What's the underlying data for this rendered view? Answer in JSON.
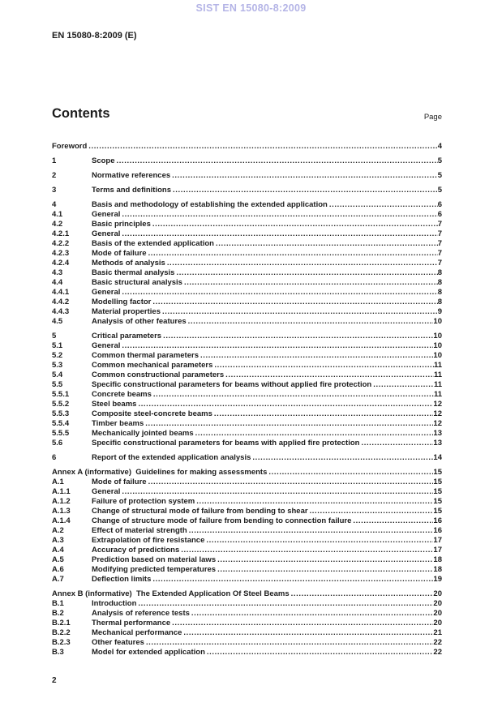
{
  "header": {
    "watermark": "SIST EN 15080-8:2009",
    "watermark_color": "#b4b4e6",
    "doc_ref": "EN 15080-8:2009 (E)"
  },
  "contents": {
    "title": "Contents",
    "page_label": "Page"
  },
  "toc": [
    {
      "num": "",
      "title": "Foreword",
      "page": "4",
      "section_start": true
    },
    {
      "num": "1",
      "title": "Scope",
      "page": "5",
      "section_start": true
    },
    {
      "num": "2",
      "title": "Normative references",
      "page": "5",
      "section_start": true
    },
    {
      "num": "3",
      "title": "Terms and definitions",
      "page": "5",
      "section_start": true
    },
    {
      "num": "4",
      "title": "Basis and methodology of establishing the extended application",
      "page": "6",
      "section_start": true
    },
    {
      "num": "4.1",
      "title": "General",
      "page": "6",
      "section_start": false
    },
    {
      "num": "4.2",
      "title": "Basic principles",
      "page": "7",
      "section_start": false
    },
    {
      "num": "4.2.1",
      "title": "General",
      "page": "7",
      "section_start": false
    },
    {
      "num": "4.2.2",
      "title": "Basis of the extended application",
      "page": "7",
      "section_start": false
    },
    {
      "num": "4.2.3",
      "title": "Mode of failure",
      "page": "7",
      "section_start": false
    },
    {
      "num": "4.2.4",
      "title": "Methods of analysis",
      "page": "7",
      "section_start": false
    },
    {
      "num": "4.3",
      "title": "Basic thermal analysis",
      "page": "8",
      "section_start": false
    },
    {
      "num": "4.4",
      "title": "Basic structural analysis",
      "page": "8",
      "section_start": false
    },
    {
      "num": "4.4.1",
      "title": "General",
      "page": "8",
      "section_start": false
    },
    {
      "num": "4.4.2",
      "title": "Modelling factor",
      "page": "8",
      "section_start": false
    },
    {
      "num": "4.4.3",
      "title": "Material properties",
      "page": "9",
      "section_start": false
    },
    {
      "num": "4.5",
      "title": "Analysis of other features",
      "page": "10",
      "section_start": false
    },
    {
      "num": "5",
      "title": "Critical parameters",
      "page": "10",
      "section_start": true
    },
    {
      "num": "5.1",
      "title": "General",
      "page": "10",
      "section_start": false
    },
    {
      "num": "5.2",
      "title": "Common thermal parameters",
      "page": "10",
      "section_start": false
    },
    {
      "num": "5.3",
      "title": "Common mechanical parameters",
      "page": "11",
      "section_start": false
    },
    {
      "num": "5.4",
      "title": "Common constructional parameters",
      "page": "11",
      "section_start": false
    },
    {
      "num": "5.5",
      "title": "Specific constructional parameters for beams without applied fire protection",
      "page": "11",
      "section_start": false
    },
    {
      "num": "5.5.1",
      "title": "Concrete beams",
      "page": "11",
      "section_start": false
    },
    {
      "num": "5.5.2",
      "title": "Steel beams",
      "page": "12",
      "section_start": false
    },
    {
      "num": "5.5.3",
      "title": "Composite steel-concrete beams",
      "page": "12",
      "section_start": false
    },
    {
      "num": "5.5.4",
      "title": "Timber beams",
      "page": "12",
      "section_start": false
    },
    {
      "num": "5.5.5",
      "title": "Mechanically jointed beams",
      "page": "13",
      "section_start": false
    },
    {
      "num": "5.6",
      "title": "Specific constructional parameters for beams with applied fire protection",
      "page": "13",
      "section_start": false
    },
    {
      "num": "6",
      "title": "Report of the extended application analysis",
      "page": "14",
      "section_start": true
    },
    {
      "num": "",
      "title": "Annex A (informative)  Guidelines for making assessments",
      "page": "15",
      "section_start": true
    },
    {
      "num": "A.1",
      "title": "Mode of failure",
      "page": "15",
      "section_start": false
    },
    {
      "num": "A.1.1",
      "title": "General",
      "page": "15",
      "section_start": false
    },
    {
      "num": "A.1.2",
      "title": "Failure of protection system",
      "page": "15",
      "section_start": false
    },
    {
      "num": "A.1.3",
      "title": "Change of structural mode of failure from bending to shear",
      "page": "15",
      "section_start": false
    },
    {
      "num": "A.1.4",
      "title": "Change of structure mode of failure from bending to connection failure",
      "page": "16",
      "section_start": false
    },
    {
      "num": "A.2",
      "title": "Effect of material strength",
      "page": "16",
      "section_start": false
    },
    {
      "num": "A.3",
      "title": "Extrapolation of fire resistance",
      "page": "17",
      "section_start": false
    },
    {
      "num": "A.4",
      "title": "Accuracy of predictions",
      "page": "17",
      "section_start": false
    },
    {
      "num": "A.5",
      "title": "Prediction based on material laws",
      "page": "18",
      "section_start": false
    },
    {
      "num": "A.6",
      "title": "Modifying predicted temperatures",
      "page": "18",
      "section_start": false
    },
    {
      "num": "A.7",
      "title": "Deflection limits",
      "page": "19",
      "section_start": false
    },
    {
      "num": "",
      "title": "Annex B (informative)  The Extended Application Of Steel Beams",
      "page": "20",
      "section_start": true
    },
    {
      "num": "B.1",
      "title": "Introduction",
      "page": "20",
      "section_start": false
    },
    {
      "num": "B.2",
      "title": "Analysis of reference tests",
      "page": "20",
      "section_start": false
    },
    {
      "num": "B.2.1",
      "title": "Thermal performance",
      "page": "20",
      "section_start": false
    },
    {
      "num": "B.2.2",
      "title": "Mechanical performance",
      "page": "21",
      "section_start": false
    },
    {
      "num": "B.2.3",
      "title": "Other features",
      "page": "22",
      "section_start": false
    },
    {
      "num": "B.3",
      "title": "Model for extended application",
      "page": "22",
      "section_start": false
    }
  ],
  "footer": {
    "page_number": "2"
  }
}
